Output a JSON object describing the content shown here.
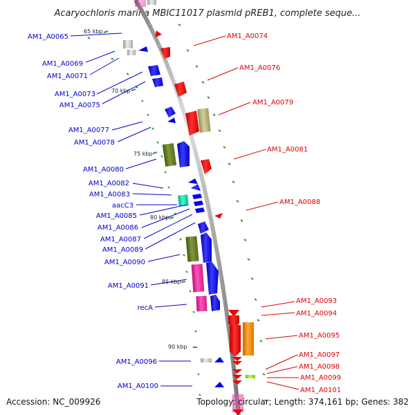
{
  "title": "Acaryochloris marina MBIC11017 plasmid pREB1, complete seque...",
  "footer": {
    "accession": "Accession: NC_009926",
    "summary": "Topology: circular; Length: 374,161 bp; Genes: 382"
  },
  "colors": {
    "left_label": "#0000cc",
    "right_label": "#dd0000",
    "backbone": "#999999",
    "tick": "#339933",
    "forward_gene": "#0000ee",
    "reverse_gene": "#ee0000"
  },
  "kbp_markers": [
    "65 kbp",
    "70 kbp",
    "75 kbp",
    "80 kbp",
    "85 kbp",
    "90 kbp"
  ],
  "left_genes": [
    "AM1_A0065",
    "AM1_A0069",
    "AM1_A0071",
    "AM1_A0073",
    "AM1_A0075",
    "AM1_A0077",
    "AM1_A0078",
    "AM1_A0080",
    "AM1_A0082",
    "AM1_A0083",
    "aacC3",
    "AM1_A0085",
    "AM1_A0086",
    "AM1_A0087",
    "AM1_A0089",
    "AM1_A0090",
    "AM1_A0091",
    "recA",
    "AM1_A0096",
    "AM1_A0100"
  ],
  "right_genes": [
    "AM1_A0074",
    "AM1_A0076",
    "AM1_A0079",
    "AM1_A0081",
    "AM1_A0088",
    "AM1_A0093",
    "AM1_A0094",
    "AM1_A0095",
    "AM1_A0097",
    "AM1_A0098",
    "AM1_A0099",
    "AM1_A0101"
  ]
}
